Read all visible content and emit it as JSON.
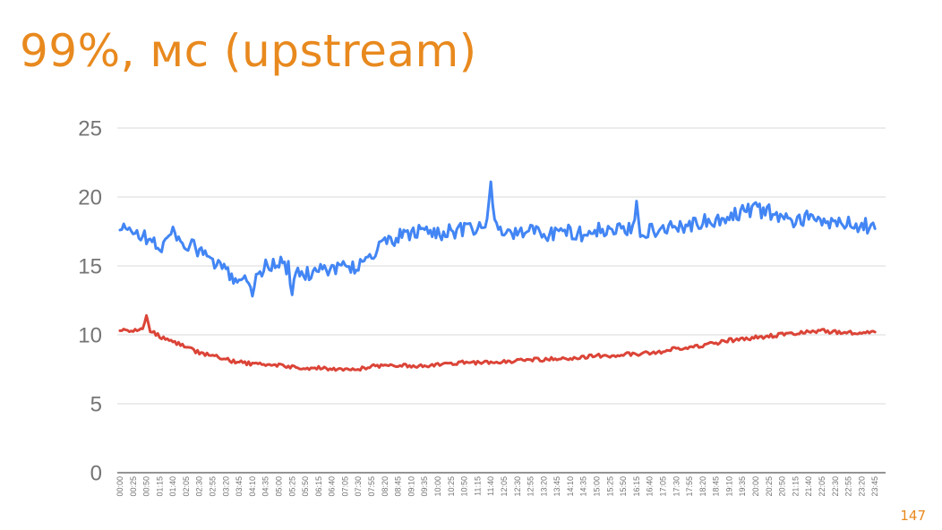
{
  "title": "99%, мс (upstream)",
  "page_number": "147",
  "colors": {
    "accent": "#e8891e",
    "grid": "#d9d9d9",
    "axis": "#555555",
    "tick_text": "#757575"
  },
  "chart_data": {
    "type": "line",
    "title": "",
    "xlabel": "",
    "ylabel": "",
    "ylim": [
      0,
      25
    ],
    "yticks": [
      0,
      5,
      10,
      15,
      20,
      25
    ],
    "grid": true,
    "legend": "none",
    "x": [
      "00:00",
      "00:25",
      "00:50",
      "01:15",
      "01:40",
      "02:05",
      "02:30",
      "02:55",
      "03:20",
      "03:45",
      "04:10",
      "04:35",
      "05:00",
      "05:25",
      "05:50",
      "06:15",
      "06:40",
      "07:05",
      "07:30",
      "07:55",
      "08:20",
      "08:45",
      "09:10",
      "09:35",
      "10:00",
      "10:25",
      "10:50",
      "11:15",
      "11:40",
      "12:05",
      "12:30",
      "12:55",
      "13:20",
      "13:45",
      "14:10",
      "14:35",
      "15:00",
      "15:25",
      "15:50",
      "16:15",
      "16:40",
      "17:05",
      "17:30",
      "17:55",
      "18:20",
      "18:45",
      "19:10",
      "19:35",
      "20:00",
      "20:25",
      "20:50",
      "21:15",
      "21:40",
      "22:05",
      "22:30",
      "22:55",
      "23:20",
      "23:45"
    ],
    "series": [
      {
        "color": "#4285f4",
        "values": [
          17.6,
          17.6,
          17.0,
          16.3,
          17.4,
          16.6,
          16.1,
          15.3,
          14.5,
          14.1,
          13.9,
          15.0,
          15.2,
          14.7,
          14.3,
          14.9,
          14.8,
          14.9,
          15.0,
          15.8,
          16.6,
          17.1,
          17.3,
          17.6,
          17.4,
          17.5,
          17.6,
          17.6,
          18.2,
          17.5,
          17.3,
          17.6,
          17.4,
          17.3,
          17.5,
          17.3,
          17.6,
          17.5,
          17.6,
          17.5,
          17.6,
          17.7,
          17.9,
          18.0,
          18.2,
          18.1,
          18.5,
          19.0,
          19.1,
          18.9,
          18.6,
          18.3,
          18.5,
          18.1,
          18.2,
          18.0,
          18.0,
          17.7
        ],
        "annotations": [
          {
            "x": "11:40",
            "value": 21.1
          },
          {
            "x": "05:25",
            "value": 12.9
          },
          {
            "x": "04:10",
            "value": 12.8
          },
          {
            "x": "16:15",
            "value": 19.7
          },
          {
            "x": "19:35",
            "value": 19.4
          },
          {
            "x": "20:00",
            "value": 19.6
          }
        ]
      },
      {
        "color": "#db4437",
        "values": [
          10.3,
          10.3,
          10.4,
          9.9,
          9.5,
          9.1,
          8.7,
          8.5,
          8.2,
          8.0,
          7.9,
          7.8,
          7.8,
          7.7,
          7.6,
          7.6,
          7.5,
          7.5,
          7.5,
          7.7,
          7.8,
          7.8,
          7.7,
          7.8,
          7.8,
          7.9,
          8.0,
          8.0,
          8.0,
          8.1,
          8.1,
          8.2,
          8.2,
          8.3,
          8.3,
          8.4,
          8.5,
          8.5,
          8.6,
          8.6,
          8.7,
          8.8,
          9.0,
          9.1,
          9.2,
          9.4,
          9.6,
          9.7,
          9.8,
          9.9,
          10.0,
          10.1,
          10.2,
          10.3,
          10.2,
          10.2,
          10.1,
          10.2
        ],
        "annotations": [
          {
            "x": "00:50",
            "value": 11.4
          }
        ]
      }
    ]
  }
}
